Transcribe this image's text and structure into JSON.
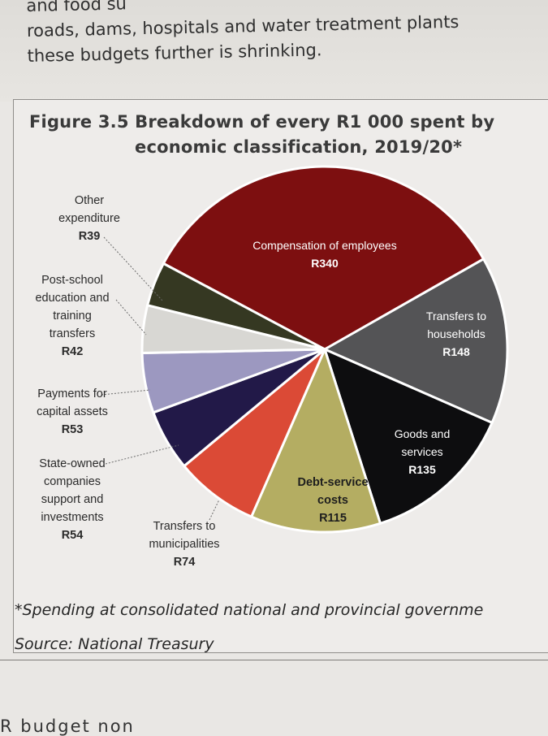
{
  "page": {
    "intro_lines": [
      "and food su",
      "roads, dams, hospitals and water treatment plants",
      "these budgets further is shrinking."
    ],
    "bottom_cut_text": "R                                    budget non"
  },
  "figure": {
    "title_line1": "Figure 3.5 Breakdown of every R1 000 spent by",
    "title_line2": "economic classification, 2019/20*",
    "footnote": "*Spending at consolidated national and provincial governme",
    "source": "Source: National Treasury"
  },
  "chart_data": {
    "type": "pie",
    "title": "Figure 3.5 Breakdown of every R1 000 spent by economic classification, 2019/20*",
    "total": 1000,
    "unit": "R",
    "slices": [
      {
        "name_lines": [
          "Compensation of employees"
        ],
        "value_label": "R340",
        "value": 340,
        "color": "#7d0f10"
      },
      {
        "name_lines": [
          "Transfers to",
          "households"
        ],
        "value_label": "R148",
        "value": 148,
        "color": "#545456"
      },
      {
        "name_lines": [
          "Goods and",
          "services"
        ],
        "value_label": "R135",
        "value": 135,
        "color": "#0d0d0f"
      },
      {
        "name_lines": [
          "Debt-service",
          "costs"
        ],
        "value_label": "R115",
        "value": 115,
        "color": "#b4ad62"
      },
      {
        "name_lines": [
          "Transfers to",
          "municipalities"
        ],
        "value_label": "R74",
        "value": 74,
        "color": "#db4a36"
      },
      {
        "name_lines": [
          "State-owned",
          "companies",
          "support and",
          "investments"
        ],
        "value_label": "R54",
        "value": 54,
        "color": "#221948"
      },
      {
        "name_lines": [
          "Payments for",
          "capital assets"
        ],
        "value_label": "R53",
        "value": 53,
        "color": "#9c98c0"
      },
      {
        "name_lines": [
          "Post-school",
          "education and",
          "training",
          "transfers"
        ],
        "value_label": "R42",
        "value": 42,
        "color": "#d8d7d3"
      },
      {
        "name_lines": [
          "Other",
          "expenditure"
        ],
        "value_label": "R39",
        "value": 39,
        "color": "#353822"
      }
    ]
  }
}
